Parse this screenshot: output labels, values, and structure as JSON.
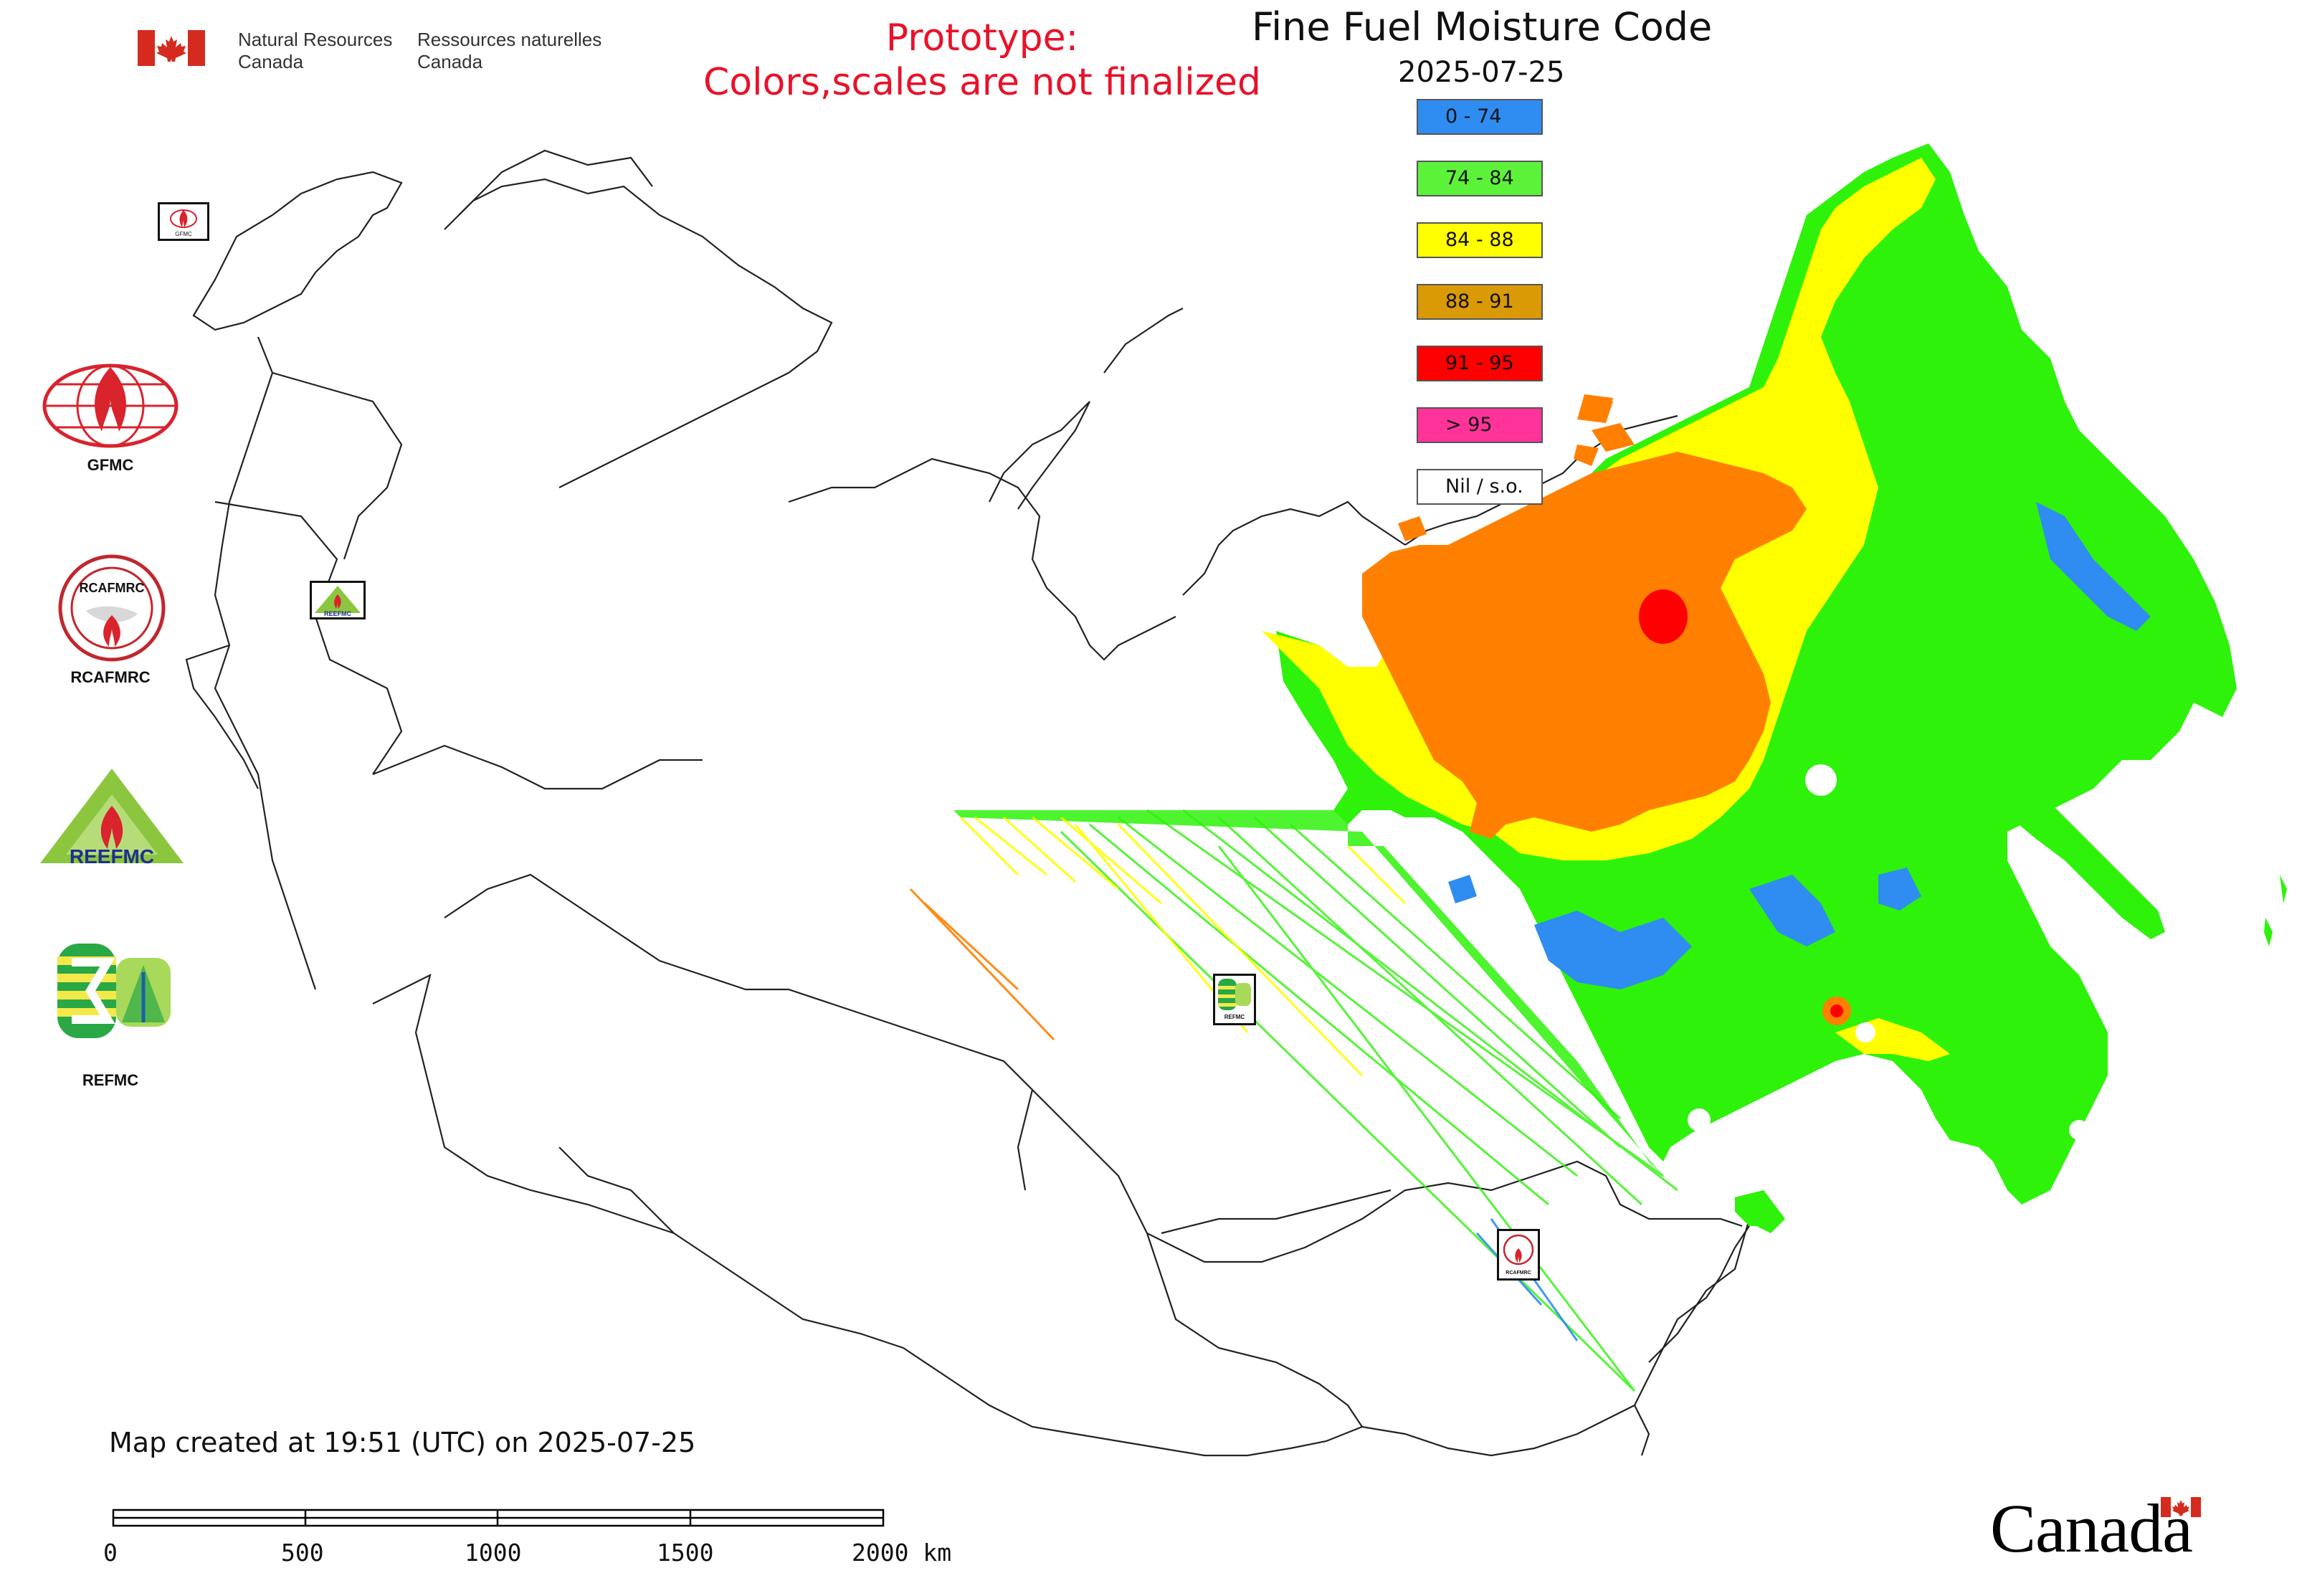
{
  "header": {
    "agency_en_line1": "Natural Resources",
    "agency_en_line2": "Canada",
    "agency_fr_line1": "Ressources naturelles",
    "agency_fr_line2": "Canada"
  },
  "prototype_notice": {
    "line1": "Prototype:",
    "line2": "Colors,scales are not finalized"
  },
  "map": {
    "title": "Fine Fuel Moisture Code",
    "date": "2025-07-25"
  },
  "legend": {
    "items": [
      {
        "label": "0 - 74",
        "color": "#2f8cf0"
      },
      {
        "label": "74 - 84",
        "color": "#5df23a"
      },
      {
        "label": "84 - 88",
        "color": "#ffff00"
      },
      {
        "label": "88 - 91",
        "color": "#d99a06"
      },
      {
        "label": "91 - 95",
        "color": "#ff0000"
      },
      {
        "label": "> 95",
        "color": "#ff3399"
      },
      {
        "label": "Nil / s.o.",
        "color": "#ffffff"
      }
    ]
  },
  "side_logos": [
    {
      "caption": "GFMC",
      "icon": "gfmc-logo-icon"
    },
    {
      "caption": "RCAFMRC",
      "icon": "rcafmrc-logo-icon"
    },
    {
      "caption": "",
      "icon": "reefmc-logo-icon",
      "text": "REEFMC"
    },
    {
      "caption": "REFMC",
      "icon": "refmc-logo-icon"
    }
  ],
  "map_markers": [
    {
      "label": "GFMC",
      "icon": "gfmc-marker-icon"
    },
    {
      "label": "REEFMC",
      "icon": "reefmc-marker-icon"
    },
    {
      "label": "REFMC",
      "icon": "refmc-marker-icon"
    },
    {
      "label": "RCAFMRC",
      "icon": "rcafmrc-marker-icon"
    }
  ],
  "footer": {
    "created_text": "Map created at 19:51 (UTC) on 2025-07-25",
    "scale_labels": [
      "0",
      "500",
      "1000",
      "1500",
      "2000 km"
    ],
    "wordmark": "Canada"
  },
  "colors": {
    "prototype_red": "#e8122a",
    "canada_flag_red": "#d52b1e",
    "orange_fill": "#ff8000"
  }
}
